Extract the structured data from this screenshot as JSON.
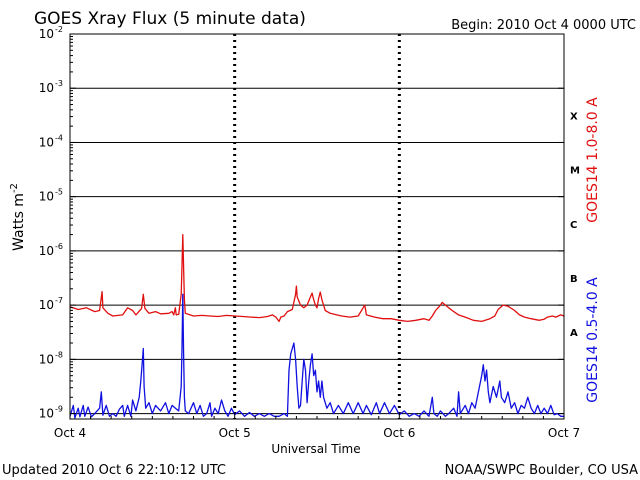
{
  "chart_data": {
    "type": "line",
    "title": "GOES Xray Flux (5 minute data)",
    "begin": "Begin:  2010 Oct 4 0000 UTC",
    "updated": "Updated 2010 Oct  6 22:10:12 UTC",
    "source": "NOAA/SWPC Boulder, CO USA",
    "xlabel": "Universal Time",
    "ylabel": "Watts m",
    "ylabel_sup": "-2",
    "x_ticks": [
      {
        "day": 0,
        "label": "Oct 4"
      },
      {
        "day": 1,
        "label": "Oct 5"
      },
      {
        "day": 2,
        "label": "Oct 6"
      },
      {
        "day": 3,
        "label": "Oct 7"
      }
    ],
    "y_ticks": [
      {
        "exp": -9,
        "label": "10",
        "sup": "-9"
      },
      {
        "exp": -8,
        "label": "10",
        "sup": "-8"
      },
      {
        "exp": -7,
        "label": "10",
        "sup": "-7"
      },
      {
        "exp": -6,
        "label": "10",
        "sup": "-6"
      },
      {
        "exp": -5,
        "label": "10",
        "sup": "-5"
      },
      {
        "exp": -4,
        "label": "10",
        "sup": "-4"
      },
      {
        "exp": -3,
        "label": "10",
        "sup": "-3"
      },
      {
        "exp": -2,
        "label": "10",
        "sup": "-2"
      }
    ],
    "ylim_exp": [
      -9.1,
      -2
    ],
    "xlim_days": [
      0,
      3
    ],
    "y_scale": "log",
    "flare_classes": [
      {
        "label": "A",
        "exp": -7.5
      },
      {
        "label": "B",
        "exp": -6.5
      },
      {
        "label": "C",
        "exp": -5.5
      },
      {
        "label": "M",
        "exp": -4.5
      },
      {
        "label": "X",
        "exp": -3.5
      }
    ],
    "colors": {
      "long": "#e01010",
      "short": "#1010e0",
      "grid": "#000000"
    },
    "series": [
      {
        "name": "GOES14 1.0-8.0 A",
        "color": "#e01010",
        "points": [
          [
            0.0,
            -7.03
          ],
          [
            0.05,
            -7.08
          ],
          [
            0.1,
            -7.05
          ],
          [
            0.15,
            -7.12
          ],
          [
            0.18,
            -7.1
          ],
          [
            0.195,
            -6.75
          ],
          [
            0.2,
            -7.05
          ],
          [
            0.23,
            -7.15
          ],
          [
            0.26,
            -7.2
          ],
          [
            0.32,
            -7.18
          ],
          [
            0.35,
            -7.05
          ],
          [
            0.38,
            -7.1
          ],
          [
            0.4,
            -7.18
          ],
          [
            0.435,
            -7.06
          ],
          [
            0.445,
            -6.8
          ],
          [
            0.455,
            -7.06
          ],
          [
            0.48,
            -7.15
          ],
          [
            0.52,
            -7.12
          ],
          [
            0.55,
            -7.16
          ],
          [
            0.6,
            -7.15
          ],
          [
            0.62,
            -7.12
          ],
          [
            0.63,
            -7.18
          ],
          [
            0.64,
            -7.05
          ],
          [
            0.645,
            -7.18
          ],
          [
            0.66,
            -7.17
          ],
          [
            0.675,
            -6.8
          ],
          [
            0.68,
            -6.27
          ],
          [
            0.685,
            -5.7
          ],
          [
            0.69,
            -6.3
          ],
          [
            0.695,
            -6.9
          ],
          [
            0.7,
            -7.15
          ],
          [
            0.75,
            -7.2
          ],
          [
            0.8,
            -7.19
          ],
          [
            0.85,
            -7.2
          ],
          [
            0.9,
            -7.21
          ],
          [
            0.95,
            -7.19
          ],
          [
            1.0,
            -7.2
          ],
          [
            1.05,
            -7.21
          ],
          [
            1.1,
            -7.22
          ],
          [
            1.15,
            -7.23
          ],
          [
            1.2,
            -7.21
          ],
          [
            1.23,
            -7.18
          ],
          [
            1.25,
            -7.22
          ],
          [
            1.27,
            -7.3
          ],
          [
            1.28,
            -7.22
          ],
          [
            1.3,
            -7.2
          ],
          [
            1.32,
            -7.12
          ],
          [
            1.35,
            -7.08
          ],
          [
            1.37,
            -6.8
          ],
          [
            1.375,
            -6.65
          ],
          [
            1.38,
            -6.85
          ],
          [
            1.4,
            -7.0
          ],
          [
            1.42,
            -7.05
          ],
          [
            1.44,
            -7.0
          ],
          [
            1.46,
            -6.85
          ],
          [
            1.47,
            -6.78
          ],
          [
            1.48,
            -6.9
          ],
          [
            1.49,
            -7.0
          ],
          [
            1.5,
            -7.05
          ],
          [
            1.51,
            -6.88
          ],
          [
            1.52,
            -6.76
          ],
          [
            1.53,
            -6.9
          ],
          [
            1.55,
            -7.1
          ],
          [
            1.58,
            -7.15
          ],
          [
            1.62,
            -7.18
          ],
          [
            1.65,
            -7.2
          ],
          [
            1.7,
            -7.22
          ],
          [
            1.75,
            -7.2
          ],
          [
            1.78,
            -7.05
          ],
          [
            1.79,
            -7.0
          ],
          [
            1.8,
            -7.18
          ],
          [
            1.85,
            -7.22
          ],
          [
            1.9,
            -7.25
          ],
          [
            1.95,
            -7.25
          ],
          [
            2.0,
            -7.28
          ],
          [
            2.05,
            -7.3
          ],
          [
            2.1,
            -7.28
          ],
          [
            2.15,
            -7.25
          ],
          [
            2.18,
            -7.28
          ],
          [
            2.2,
            -7.2
          ],
          [
            2.22,
            -7.1
          ],
          [
            2.25,
            -7.0
          ],
          [
            2.26,
            -6.95
          ],
          [
            2.3,
            -7.05
          ],
          [
            2.33,
            -7.12
          ],
          [
            2.36,
            -7.18
          ],
          [
            2.4,
            -7.22
          ],
          [
            2.45,
            -7.28
          ],
          [
            2.5,
            -7.3
          ],
          [
            2.55,
            -7.25
          ],
          [
            2.58,
            -7.2
          ],
          [
            2.6,
            -7.08
          ],
          [
            2.63,
            -7.0
          ],
          [
            2.66,
            -7.02
          ],
          [
            2.7,
            -7.1
          ],
          [
            2.73,
            -7.18
          ],
          [
            2.76,
            -7.22
          ],
          [
            2.8,
            -7.25
          ],
          [
            2.85,
            -7.28
          ],
          [
            2.88,
            -7.26
          ],
          [
            2.9,
            -7.22
          ],
          [
            2.93,
            -7.2
          ],
          [
            2.95,
            -7.22
          ],
          [
            2.98,
            -7.18
          ],
          [
            3.0,
            -7.2
          ]
        ]
      },
      {
        "name": "GOES14 0.5-4.0 A",
        "color": "#1010e0",
        "points": [
          [
            0.0,
            -9.05
          ],
          [
            0.02,
            -8.85
          ],
          [
            0.03,
            -9.08
          ],
          [
            0.05,
            -8.9
          ],
          [
            0.06,
            -9.06
          ],
          [
            0.08,
            -8.85
          ],
          [
            0.09,
            -9.05
          ],
          [
            0.11,
            -8.88
          ],
          [
            0.13,
            -9.06
          ],
          [
            0.15,
            -9.0
          ],
          [
            0.18,
            -8.9
          ],
          [
            0.19,
            -8.6
          ],
          [
            0.2,
            -9.03
          ],
          [
            0.22,
            -8.85
          ],
          [
            0.24,
            -9.05
          ],
          [
            0.26,
            -9.0
          ],
          [
            0.28,
            -9.05
          ],
          [
            0.3,
            -8.92
          ],
          [
            0.32,
            -8.85
          ],
          [
            0.33,
            -9.05
          ],
          [
            0.35,
            -8.85
          ],
          [
            0.37,
            -9.05
          ],
          [
            0.38,
            -8.75
          ],
          [
            0.4,
            -8.95
          ],
          [
            0.42,
            -8.7
          ],
          [
            0.43,
            -8.4
          ],
          [
            0.44,
            -8.0
          ],
          [
            0.445,
            -7.8
          ],
          [
            0.45,
            -8.5
          ],
          [
            0.46,
            -8.9
          ],
          [
            0.48,
            -8.8
          ],
          [
            0.5,
            -9.0
          ],
          [
            0.52,
            -8.85
          ],
          [
            0.55,
            -8.95
          ],
          [
            0.58,
            -8.8
          ],
          [
            0.6,
            -9.0
          ],
          [
            0.62,
            -8.85
          ],
          [
            0.64,
            -8.9
          ],
          [
            0.66,
            -8.95
          ],
          [
            0.675,
            -8.5
          ],
          [
            0.68,
            -7.8
          ],
          [
            0.685,
            -6.8
          ],
          [
            0.69,
            -7.9
          ],
          [
            0.695,
            -8.7
          ],
          [
            0.7,
            -8.95
          ],
          [
            0.72,
            -9.0
          ],
          [
            0.75,
            -8.8
          ],
          [
            0.77,
            -9.0
          ],
          [
            0.79,
            -8.85
          ],
          [
            0.81,
            -9.05
          ],
          [
            0.83,
            -9.0
          ],
          [
            0.85,
            -8.8
          ],
          [
            0.86,
            -9.05
          ],
          [
            0.88,
            -8.9
          ],
          [
            0.9,
            -9.0
          ],
          [
            0.92,
            -8.75
          ],
          [
            0.94,
            -8.95
          ],
          [
            0.96,
            -9.05
          ],
          [
            0.98,
            -8.9
          ],
          [
            1.0,
            -9.02
          ],
          [
            1.03,
            -8.95
          ],
          [
            1.06,
            -9.05
          ],
          [
            1.09,
            -8.98
          ],
          [
            1.12,
            -9.05
          ],
          [
            1.15,
            -9.0
          ],
          [
            1.18,
            -9.05
          ],
          [
            1.21,
            -9.0
          ],
          [
            1.24,
            -9.05
          ],
          [
            1.27,
            -9.05
          ],
          [
            1.3,
            -9.0
          ],
          [
            1.32,
            -9.05
          ],
          [
            1.33,
            -8.2
          ],
          [
            1.34,
            -7.9
          ],
          [
            1.35,
            -7.8
          ],
          [
            1.36,
            -7.7
          ],
          [
            1.37,
            -8.0
          ],
          [
            1.38,
            -8.5
          ],
          [
            1.39,
            -8.9
          ],
          [
            1.4,
            -8.85
          ],
          [
            1.41,
            -8.4
          ],
          [
            1.42,
            -8.0
          ],
          [
            1.43,
            -8.2
          ],
          [
            1.44,
            -8.8
          ],
          [
            1.45,
            -8.4
          ],
          [
            1.46,
            -8.1
          ],
          [
            1.47,
            -7.9
          ],
          [
            1.48,
            -8.3
          ],
          [
            1.49,
            -8.2
          ],
          [
            1.5,
            -8.6
          ],
          [
            1.51,
            -8.4
          ],
          [
            1.52,
            -8.7
          ],
          [
            1.53,
            -8.4
          ],
          [
            1.54,
            -8.7
          ],
          [
            1.56,
            -8.9
          ],
          [
            1.58,
            -8.8
          ],
          [
            1.6,
            -9.0
          ],
          [
            1.63,
            -8.85
          ],
          [
            1.66,
            -9.0
          ],
          [
            1.69,
            -8.8
          ],
          [
            1.72,
            -9.0
          ],
          [
            1.75,
            -8.8
          ],
          [
            1.78,
            -9.0
          ],
          [
            1.8,
            -8.85
          ],
          [
            1.83,
            -9.02
          ],
          [
            1.86,
            -8.8
          ],
          [
            1.88,
            -9.0
          ],
          [
            1.91,
            -8.8
          ],
          [
            1.94,
            -9.0
          ],
          [
            1.97,
            -8.85
          ],
          [
            2.0,
            -9.02
          ],
          [
            2.03,
            -8.95
          ],
          [
            2.06,
            -9.05
          ],
          [
            2.09,
            -9.0
          ],
          [
            2.12,
            -9.05
          ],
          [
            2.15,
            -8.95
          ],
          [
            2.18,
            -9.05
          ],
          [
            2.2,
            -8.7
          ],
          [
            2.21,
            -9.0
          ],
          [
            2.23,
            -9.05
          ],
          [
            2.25,
            -8.95
          ],
          [
            2.28,
            -9.05
          ],
          [
            2.3,
            -9.0
          ],
          [
            2.33,
            -8.9
          ],
          [
            2.35,
            -9.05
          ],
          [
            2.36,
            -8.6
          ],
          [
            2.37,
            -9.0
          ],
          [
            2.4,
            -8.85
          ],
          [
            2.42,
            -9.0
          ],
          [
            2.44,
            -8.8
          ],
          [
            2.46,
            -8.9
          ],
          [
            2.48,
            -8.6
          ],
          [
            2.5,
            -8.3
          ],
          [
            2.51,
            -8.1
          ],
          [
            2.52,
            -8.4
          ],
          [
            2.53,
            -8.2
          ],
          [
            2.54,
            -8.6
          ],
          [
            2.55,
            -8.8
          ],
          [
            2.57,
            -8.5
          ],
          [
            2.59,
            -8.7
          ],
          [
            2.61,
            -8.4
          ],
          [
            2.62,
            -8.7
          ],
          [
            2.64,
            -8.8
          ],
          [
            2.66,
            -8.6
          ],
          [
            2.68,
            -8.9
          ],
          [
            2.7,
            -8.8
          ],
          [
            2.72,
            -9.0
          ],
          [
            2.74,
            -8.85
          ],
          [
            2.76,
            -8.9
          ],
          [
            2.78,
            -8.7
          ],
          [
            2.8,
            -8.9
          ],
          [
            2.82,
            -9.0
          ],
          [
            2.84,
            -8.85
          ],
          [
            2.86,
            -9.0
          ],
          [
            2.88,
            -8.9
          ],
          [
            2.9,
            -9.0
          ],
          [
            2.92,
            -8.85
          ],
          [
            2.94,
            -9.02
          ],
          [
            2.96,
            -9.0
          ],
          [
            2.98,
            -9.05
          ],
          [
            3.0,
            -9.05
          ]
        ]
      }
    ]
  }
}
